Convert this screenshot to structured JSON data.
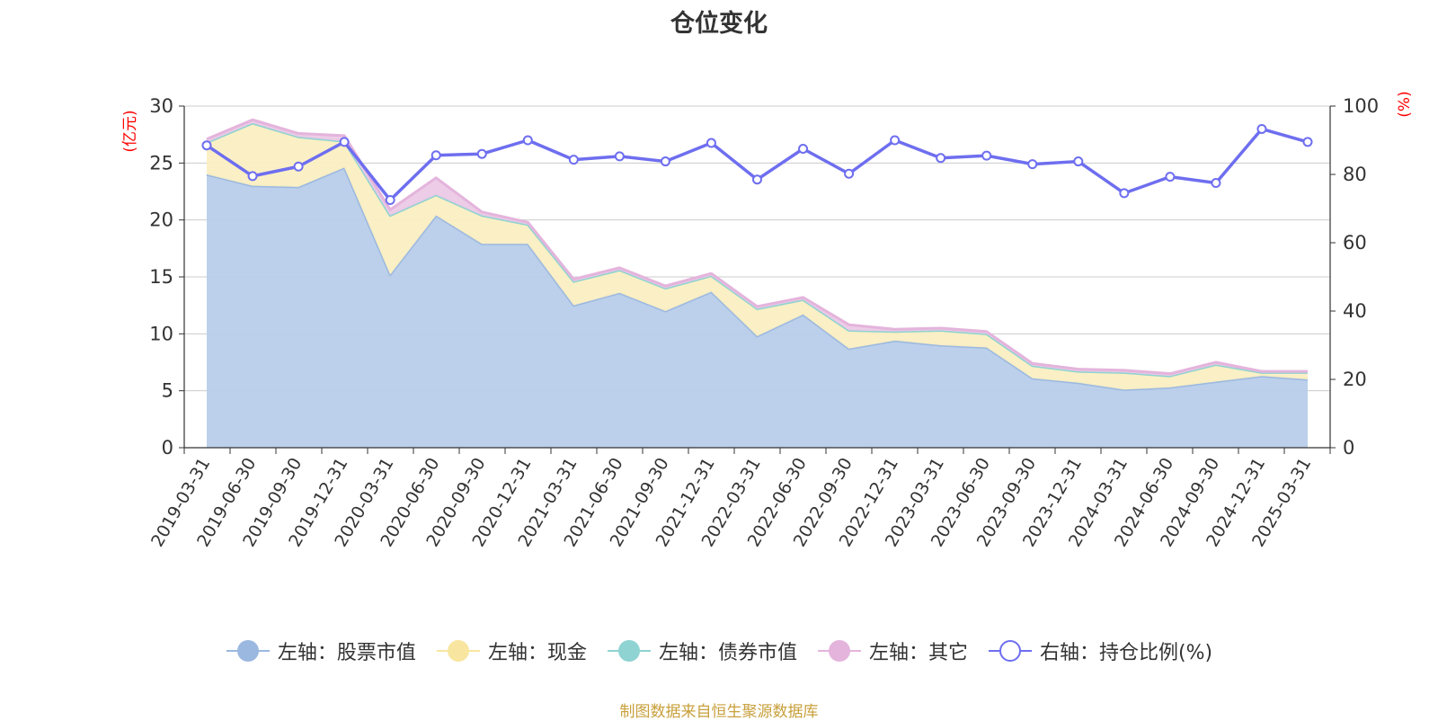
{
  "title": "仓位变化",
  "source_note": "制图数据来自恒生聚源数据库",
  "colors": {
    "stock": "#9bb8e0",
    "stock_fill": "#b8cdea",
    "cash": "#f8e6a0",
    "cash_fill": "#fbefc2",
    "bond": "#8fd3d3",
    "other": "#e4b4dc",
    "other_fill": "#ecc9e6",
    "ratio": "#6e6ef0",
    "axis_unit": "#ff0000",
    "grid": "#cccccc",
    "axis": "#333333",
    "title": "#333333",
    "source": "#c8a03c"
  },
  "chart_data": {
    "type": "area",
    "title": "仓位变化",
    "left_axis": {
      "unit": "(亿元)",
      "ylim": [
        0,
        30
      ],
      "ticks": [
        "0",
        "5",
        "10",
        "15",
        "20",
        "25",
        "30"
      ]
    },
    "right_axis": {
      "unit": "(%)",
      "ylim": [
        0,
        100
      ],
      "ticks": [
        "0",
        "20",
        "40",
        "60",
        "80",
        "100"
      ]
    },
    "grid": true,
    "legend_position": "bottom",
    "categories": [
      "2019-03-31",
      "2019-06-30",
      "2019-09-30",
      "2019-12-31",
      "2020-03-31",
      "2020-06-30",
      "2020-09-30",
      "2020-12-31",
      "2021-03-31",
      "2021-06-30",
      "2021-09-30",
      "2021-12-31",
      "2022-03-31",
      "2022-06-30",
      "2022-09-30",
      "2022-12-31",
      "2023-03-31",
      "2023-06-30",
      "2023-09-30",
      "2023-12-31",
      "2024-03-31",
      "2024-06-30",
      "2024-09-30",
      "2024-12-31",
      "2025-03-31"
    ],
    "series": [
      {
        "name": "左轴：股票市值",
        "axis": "left",
        "stack": true,
        "color_key": "stock",
        "values": [
          24.0,
          23.0,
          22.9,
          24.6,
          15.2,
          20.4,
          17.9,
          17.9,
          12.5,
          13.6,
          12.0,
          13.7,
          9.8,
          11.7,
          8.7,
          9.4,
          9.0,
          8.8,
          6.1,
          5.7,
          5.1,
          5.3,
          5.8,
          6.3,
          6.0
        ]
      },
      {
        "name": "左轴：现金",
        "axis": "left",
        "stack": true,
        "color_key": "cash",
        "values": [
          2.8,
          5.5,
          4.4,
          2.3,
          5.2,
          1.8,
          2.5,
          1.7,
          2.1,
          2.0,
          2.0,
          1.4,
          2.4,
          1.3,
          1.6,
          0.8,
          1.3,
          1.2,
          1.1,
          1.0,
          1.5,
          1.0,
          1.5,
          0.3,
          0.6
        ]
      },
      {
        "name": "左轴：债券市值",
        "axis": "left",
        "stack": true,
        "color_key": "bond",
        "values": [
          0,
          0,
          0,
          0,
          0,
          0,
          0,
          0,
          0,
          0,
          0,
          0,
          0,
          0,
          0,
          0,
          0,
          0,
          0,
          0,
          0,
          0,
          0,
          0,
          0
        ]
      },
      {
        "name": "左轴：其它",
        "axis": "left",
        "stack": true,
        "color_key": "other",
        "values": [
          0.3,
          0.3,
          0.3,
          0.5,
          0.5,
          1.5,
          0.3,
          0.2,
          0.2,
          0.2,
          0.2,
          0.2,
          0.2,
          0.2,
          0.5,
          0.2,
          0.2,
          0.2,
          0.2,
          0.2,
          0.2,
          0.2,
          0.2,
          0.1,
          0.1
        ]
      },
      {
        "name": "右轴：持仓比例(%)",
        "axis": "right",
        "type": "line",
        "color_key": "ratio",
        "values": [
          88.5,
          79.5,
          82.3,
          89.5,
          72.5,
          85.6,
          86.0,
          90.0,
          84.3,
          85.3,
          83.8,
          89.2,
          78.5,
          87.5,
          80.2,
          90.0,
          84.8,
          85.5,
          83.0,
          83.8,
          74.5,
          79.3,
          77.5,
          93.3,
          89.5
        ]
      }
    ]
  }
}
